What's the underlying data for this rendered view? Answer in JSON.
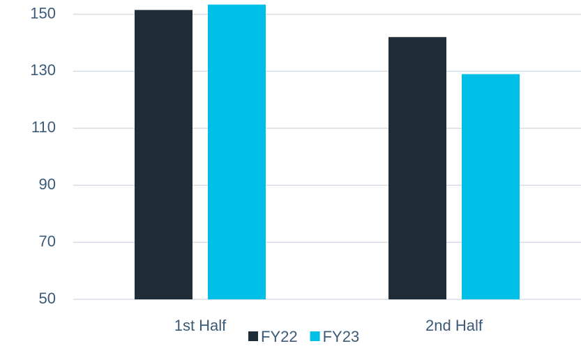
{
  "chart_data": {
    "type": "bar",
    "categories": [
      "1st Half",
      "2nd Half"
    ],
    "series": [
      {
        "name": "FY22",
        "color": "#1f2d38",
        "values": [
          151.5,
          142
        ]
      },
      {
        "name": "FY23",
        "color": "#00bfe7",
        "values": [
          153.4,
          129
        ]
      }
    ],
    "ylim": [
      50,
      155
    ],
    "yticks": [
      50,
      70,
      90,
      110,
      130,
      150
    ],
    "grid": true,
    "legend": "bottom"
  }
}
